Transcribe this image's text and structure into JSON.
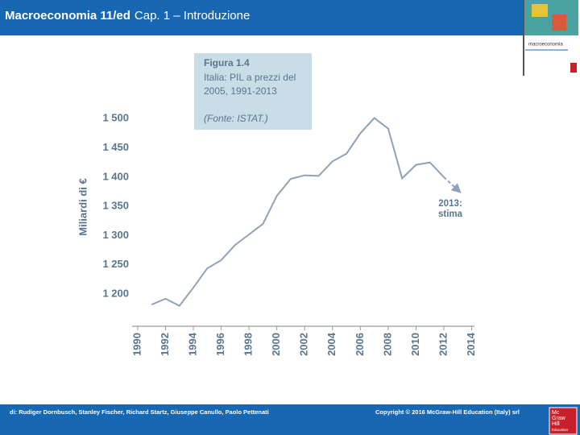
{
  "header": {
    "title_bold": "Macroeconomia 11/ed",
    "title_rest": "Cap. 1 – Introduzione"
  },
  "cover": {
    "label": "macroeconomia"
  },
  "chart_data": {
    "type": "line",
    "title": "Figura 1.4",
    "subtitle": [
      "Italia: PIL a prezzi del",
      "2005, 1991-2013"
    ],
    "source": "(Fonte: ISTAT.)",
    "ylabel": "Miliardi di €",
    "x": [
      1991,
      1992,
      1993,
      1994,
      1995,
      1996,
      1997,
      1998,
      1999,
      2000,
      2001,
      2002,
      2003,
      2004,
      2005,
      2006,
      2007,
      2008,
      2009,
      2010,
      2011,
      2012,
      2013
    ],
    "values": [
      1182,
      1192,
      1180,
      1211,
      1244,
      1258,
      1284,
      1302,
      1320,
      1368,
      1397,
      1403,
      1402,
      1427,
      1440,
      1475,
      1501,
      1483,
      1398,
      1421,
      1425,
      1400,
      1378
    ],
    "color": "#8ea3b8",
    "estimate_from": 2012,
    "annotation": [
      "2013:",
      "stima"
    ],
    "xlim": [
      1989.6,
      2014.2
    ],
    "xticks": [
      1990,
      1992,
      1994,
      1996,
      1998,
      2000,
      2002,
      2004,
      2006,
      2008,
      2010,
      2012,
      2014
    ],
    "ylim": [
      1145,
      1510
    ],
    "yticks": [
      {
        "value": 1200,
        "label": "1 200"
      },
      {
        "value": 1250,
        "label": "1 250"
      },
      {
        "value": 1300,
        "label": "1 300"
      },
      {
        "value": 1350,
        "label": "1 350"
      },
      {
        "value": 1400,
        "label": "1 400"
      },
      {
        "value": 1450,
        "label": "1 450"
      },
      {
        "value": 1500,
        "label": "1 500"
      }
    ]
  },
  "footer": {
    "authors": "di: Rudiger Dornbusch, Stanley Fischer, Richard Startz, Giuseppe Canullo, Paolo Pettenati",
    "copyright": "Copyright © 2016 McGraw-Hill Education (Italy) srl",
    "logo": [
      "Mc",
      "Graw",
      "Hill",
      "Education"
    ]
  }
}
